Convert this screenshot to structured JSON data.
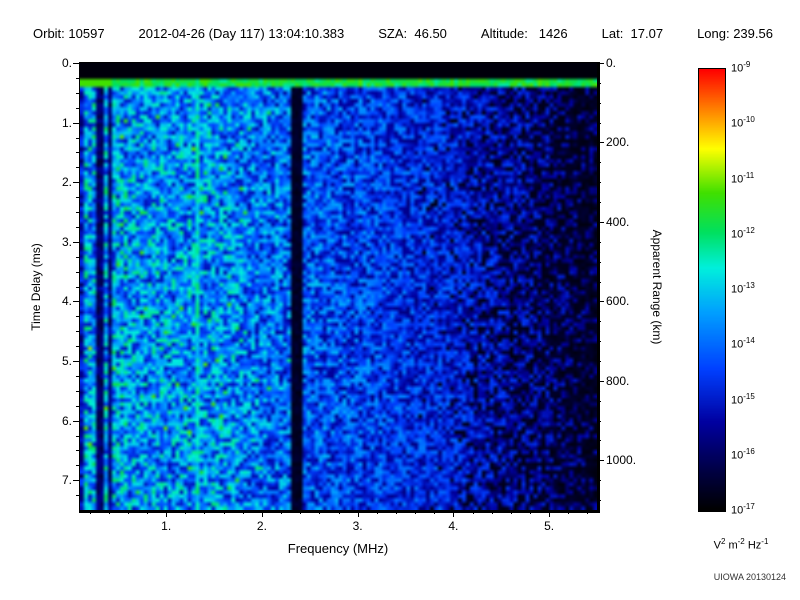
{
  "header": {
    "segments": [
      "Orbit: 10597",
      "2012-04-26 (Day 117) 13:04:10.383",
      "SZA:  46.50",
      "Altitude:   1426",
      "Lat:  17.07",
      "Long: 239.56"
    ]
  },
  "footer": {
    "credit": "UIOWA 20130124"
  },
  "chart_data": {
    "type": "heatmap",
    "summary": "Radar-sounder ionogram spectrogram: broadband blue/cyan noise strongest below ~2.3 MHz, fading to dark blue with black dropouts above ~4 MHz; bright cyan horizontal echo line near 0.33 ms delay across all frequencies; bright vertical line near 1.32 MHz; dark vertical lines near 0.31 and 0.41 MHz; nearly black vertical band near 2.31-2.42 MHz; black strip above the echo line.",
    "xlabel": "Frequency (MHz)",
    "ylabel_left": "Time Delay (ms)",
    "ylabel_right": "Apparent Range (km)",
    "x_range_mhz": [
      0.1,
      5.5
    ],
    "x_major_ticks": {
      "values": [
        1,
        2,
        3,
        4,
        5
      ],
      "labels": [
        "1.",
        "2.",
        "3.",
        "4.",
        "5."
      ]
    },
    "x_minor_step_mhz": 0.2,
    "y_range_ms": [
      0,
      7.5
    ],
    "y_major_ticks": {
      "values": [
        0,
        1,
        2,
        3,
        4,
        5,
        6,
        7
      ],
      "labels": [
        "0.",
        "1.",
        "2.",
        "3.",
        "4.",
        "5.",
        "6.",
        "7."
      ]
    },
    "y_minor_step_ms": 0.25,
    "right_axis": {
      "km_per_ms": 150,
      "ticks_km": [
        0,
        200,
        400,
        600,
        800,
        1000
      ],
      "labels": [
        "0.",
        "200.",
        "400.",
        "600.",
        "800.",
        "1000."
      ],
      "minor_step_km": 50
    },
    "colorbar": {
      "scale": "log",
      "top_value": "1e-9",
      "bottom_value": "1e-17",
      "tick_base": "10",
      "tick_exponents": [
        "-9",
        "-10",
        "-11",
        "-12",
        "-13",
        "-14",
        "-15",
        "-16",
        "-17"
      ],
      "unit_parts": [
        {
          "base": "V",
          "exp": "2"
        },
        {
          "base": "m",
          "exp": "-2"
        },
        {
          "base": "Hz",
          "exp": "-1"
        }
      ]
    },
    "colormap_stops": [
      [
        0.0,
        [
          0,
          0,
          0
        ]
      ],
      [
        0.08,
        [
          0,
          0,
          60
        ]
      ],
      [
        0.2,
        [
          0,
          0,
          160
        ]
      ],
      [
        0.32,
        [
          0,
          64,
          255
        ]
      ],
      [
        0.45,
        [
          0,
          160,
          255
        ]
      ],
      [
        0.55,
        [
          0,
          240,
          220
        ]
      ],
      [
        0.63,
        [
          0,
          224,
          96
        ]
      ],
      [
        0.72,
        [
          64,
          224,
          0
        ]
      ],
      [
        0.82,
        [
          255,
          255,
          0
        ]
      ],
      [
        0.91,
        [
          255,
          128,
          0
        ]
      ],
      [
        1.0,
        [
          255,
          0,
          0
        ]
      ]
    ],
    "features": {
      "top_black_below_ms": 0.26,
      "echo_line": {
        "t_ms": 0.33,
        "half_width_ms": 0.07,
        "intensity": 0.58
      },
      "vertical_bright_line_mhz": 1.32,
      "vertical_dark_lines": [
        {
          "f_mhz": 0.31,
          "half_width_mhz": 0.025,
          "factor": 0.3
        },
        {
          "f_mhz": 0.41,
          "half_width_mhz": 0.02,
          "factor": 0.35
        },
        {
          "f_mhz": 0.55,
          "half_width_mhz": 0.012,
          "factor": 0.6
        }
      ],
      "dark_band_mhz": [
        2.31,
        2.42
      ],
      "noise": {
        "base_low": 0.41,
        "base_mid": 0.34,
        "base_high": 0.25,
        "low_to_mid_mhz": 1.5,
        "mid_mhz": 2.35,
        "high_mhz": 4.0,
        "dropout_start_mhz": 3.6
      },
      "random_seed": 20130124
    }
  }
}
